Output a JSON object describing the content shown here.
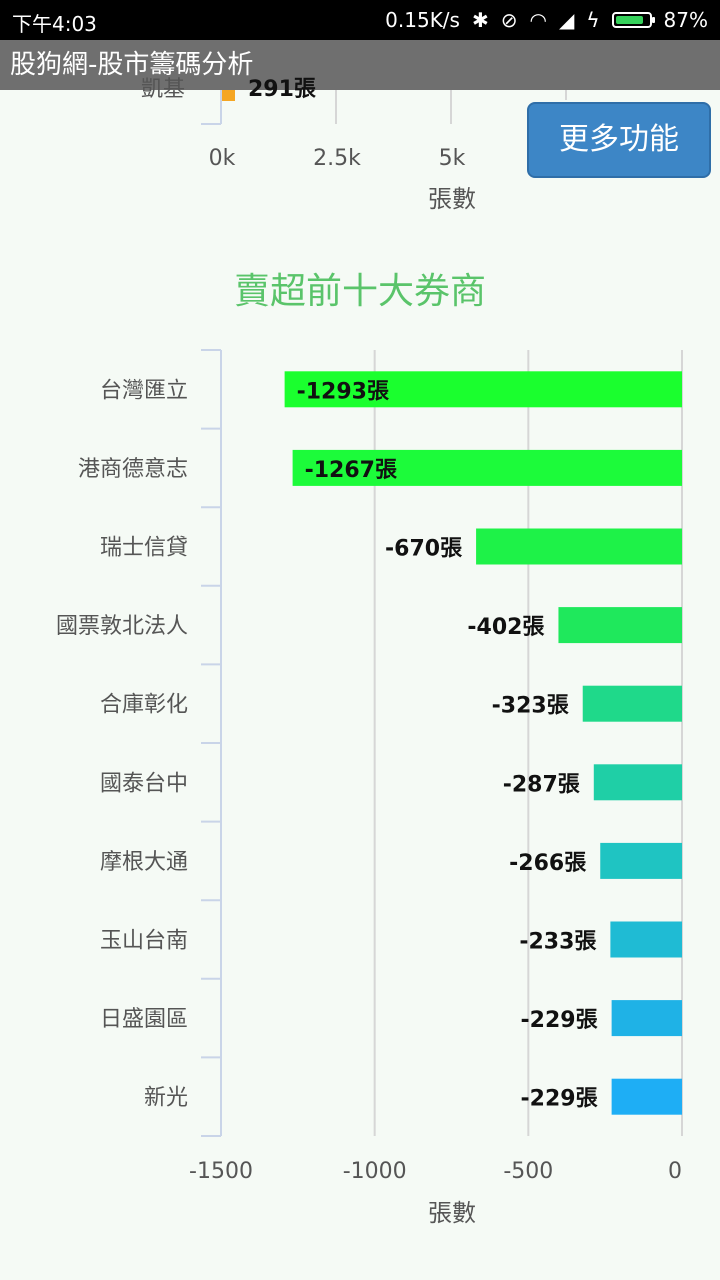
{
  "status_bar": {
    "time": "下午4:03",
    "network_speed": "0.15K/s",
    "battery": "87%",
    "battery_level": 0.87,
    "icons": [
      "bluetooth-icon",
      "mute-vibrate-icon",
      "wifi-icon",
      "signal-icon",
      "charging-icon",
      "battery-icon"
    ]
  },
  "app": {
    "title": "股狗網-股市籌碼分析"
  },
  "more_button": {
    "label": "更多功能"
  },
  "top_chart_partial": {
    "visible_bar_label": "291張",
    "truncated_category": "凱基",
    "ticks": [
      "0k",
      "2.5k",
      "5k"
    ],
    "xlabel": "張數"
  },
  "chart_data": {
    "type": "bar",
    "orientation": "horizontal",
    "title": "賣超前十大券商",
    "xlabel": "張數",
    "xlim": [
      -1500,
      0
    ],
    "x_ticks": [
      -1500,
      -1000,
      -500,
      0
    ],
    "x_tick_labels": [
      "-1500",
      "-1000",
      "-500",
      "0"
    ],
    "categories": [
      "台灣匯立",
      "港商德意志",
      "瑞士信貸",
      "國票敦北法人",
      "合庫彰化",
      "國泰台中",
      "摩根大通",
      "玉山台南",
      "日盛園區",
      "新光"
    ],
    "values": [
      -1293,
      -1267,
      -670,
      -402,
      -323,
      -287,
      -266,
      -233,
      -229,
      -229
    ],
    "data_labels": [
      "-1293張",
      "-1267張",
      "-670張",
      "-402張",
      "-323張",
      "-287張",
      "-266張",
      "-233張",
      "-229張",
      "-229張"
    ],
    "colors": [
      "#1aff2e",
      "#1cfb3a",
      "#1ef248",
      "#1fe85c",
      "#1fd98a",
      "#1fcfa6",
      "#1fc4c2",
      "#1fbbd4",
      "#1fb2e6",
      "#1eaef5"
    ],
    "grid": true
  }
}
